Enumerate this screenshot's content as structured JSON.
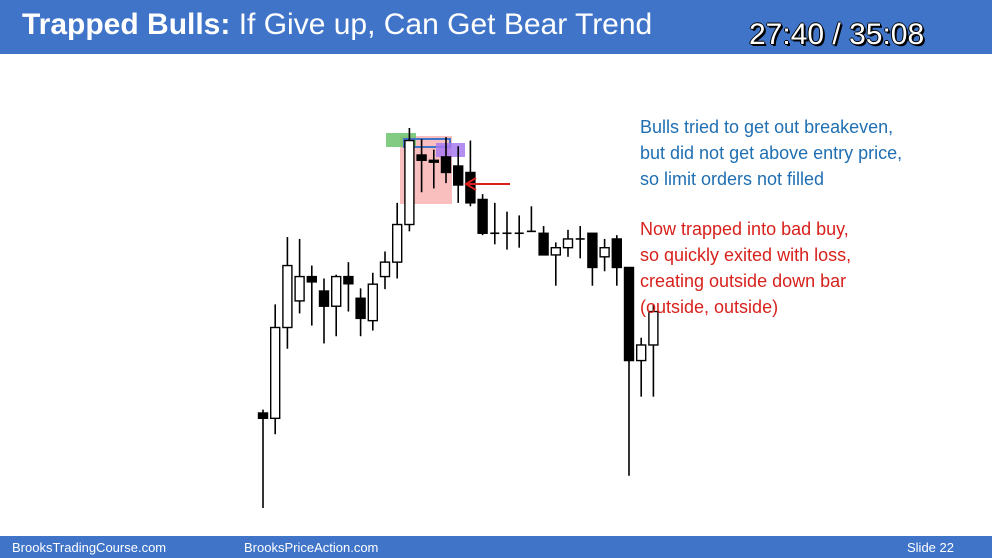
{
  "header": {
    "title_bold": "Trapped Bulls:",
    "title_rest": " If Give up, Can Get Bear Trend",
    "timer": "27:40 / 35:08"
  },
  "notes": {
    "blue_lines": [
      "Bulls tried to get out breakeven,",
      "but did not get above entry price,",
      "so limit orders not filled"
    ],
    "red_lines": [
      "Now trapped into bad buy,",
      "so quickly exited with loss,",
      "creating outside down bar",
      "(outside, outside)"
    ]
  },
  "footer": {
    "left": "BrooksTradingCourse.com",
    "middle": "BrooksPriceAction.com",
    "slide": "Slide  22"
  },
  "colors": {
    "header_bg": "#3f74c9",
    "note_blue": "#1f6fb2",
    "note_red": "#d8211c",
    "highlight_green": "#6cc26c",
    "highlight_red": "#f7a8a8",
    "highlight_purple": "#a87af0",
    "arrow": "#d8211c"
  },
  "chart_data": {
    "type": "candlestick",
    "title": "",
    "xlabel": "",
    "ylabel": "",
    "ylim": [
      0,
      100
    ],
    "bars": [
      {
        "o": 25.0,
        "h": 25.9,
        "l": 0.0,
        "c": 23.6
      },
      {
        "o": 23.6,
        "h": 53.6,
        "l": 19.4,
        "c": 47.5
      },
      {
        "o": 47.5,
        "h": 71.3,
        "l": 41.9,
        "c": 63.8
      },
      {
        "o": 54.5,
        "h": 70.8,
        "l": 51.2,
        "c": 60.9
      },
      {
        "o": 60.9,
        "h": 63.8,
        "l": 48.0,
        "c": 59.5
      },
      {
        "o": 57.1,
        "h": 60.4,
        "l": 43.3,
        "c": 53.1
      },
      {
        "o": 53.1,
        "h": 61.4,
        "l": 45.2,
        "c": 60.9
      },
      {
        "o": 60.9,
        "h": 64.7,
        "l": 51.7,
        "c": 59.0
      },
      {
        "o": 55.2,
        "h": 57.8,
        "l": 45.2,
        "c": 49.9
      },
      {
        "o": 49.3,
        "h": 61.9,
        "l": 46.7,
        "c": 58.9
      },
      {
        "o": 60.9,
        "h": 67.5,
        "l": 57.6,
        "c": 64.7
      },
      {
        "o": 64.7,
        "h": 80.3,
        "l": 60.4,
        "c": 74.6
      },
      {
        "o": 74.6,
        "h": 100.0,
        "l": 72.8,
        "c": 96.7
      },
      {
        "o": 92.9,
        "h": 97.1,
        "l": 83.1,
        "c": 91.5
      },
      {
        "o": 91.5,
        "h": 94.3,
        "l": 84.1,
        "c": 91.0
      },
      {
        "o": 92.4,
        "h": 97.6,
        "l": 85.5,
        "c": 88.3
      },
      {
        "o": 90.0,
        "h": 95.2,
        "l": 80.3,
        "c": 85.0
      },
      {
        "o": 88.3,
        "h": 96.7,
        "l": 79.4,
        "c": 80.3
      },
      {
        "o": 81.2,
        "h": 82.6,
        "l": 71.8,
        "c": 72.3
      },
      {
        "o": 72.3,
        "h": 80.3,
        "l": 69.4,
        "c": 72.3
      },
      {
        "o": 72.3,
        "h": 78.0,
        "l": 68.0,
        "c": 72.3
      },
      {
        "o": 72.3,
        "h": 77.0,
        "l": 68.5,
        "c": 72.3
      },
      {
        "o": 72.8,
        "h": 79.4,
        "l": 72.8,
        "c": 72.8
      },
      {
        "o": 72.3,
        "h": 74.2,
        "l": 66.6,
        "c": 66.6
      },
      {
        "o": 66.6,
        "h": 69.9,
        "l": 58.5,
        "c": 68.5
      },
      {
        "o": 68.5,
        "h": 73.2,
        "l": 66.1,
        "c": 70.8
      },
      {
        "o": 70.8,
        "h": 74.2,
        "l": 65.7,
        "c": 70.8
      },
      {
        "o": 72.3,
        "h": 72.3,
        "l": 58.5,
        "c": 63.3
      },
      {
        "o": 66.1,
        "h": 70.8,
        "l": 62.3,
        "c": 68.5
      },
      {
        "o": 70.8,
        "h": 71.8,
        "l": 58.5,
        "c": 63.3
      },
      {
        "o": 63.3,
        "h": 63.3,
        "l": 8.5,
        "c": 38.8
      },
      {
        "o": 38.8,
        "h": 44.8,
        "l": 29.3,
        "c": 42.9
      },
      {
        "o": 42.9,
        "h": 53.6,
        "l": 29.3,
        "c": 51.7
      }
    ]
  }
}
